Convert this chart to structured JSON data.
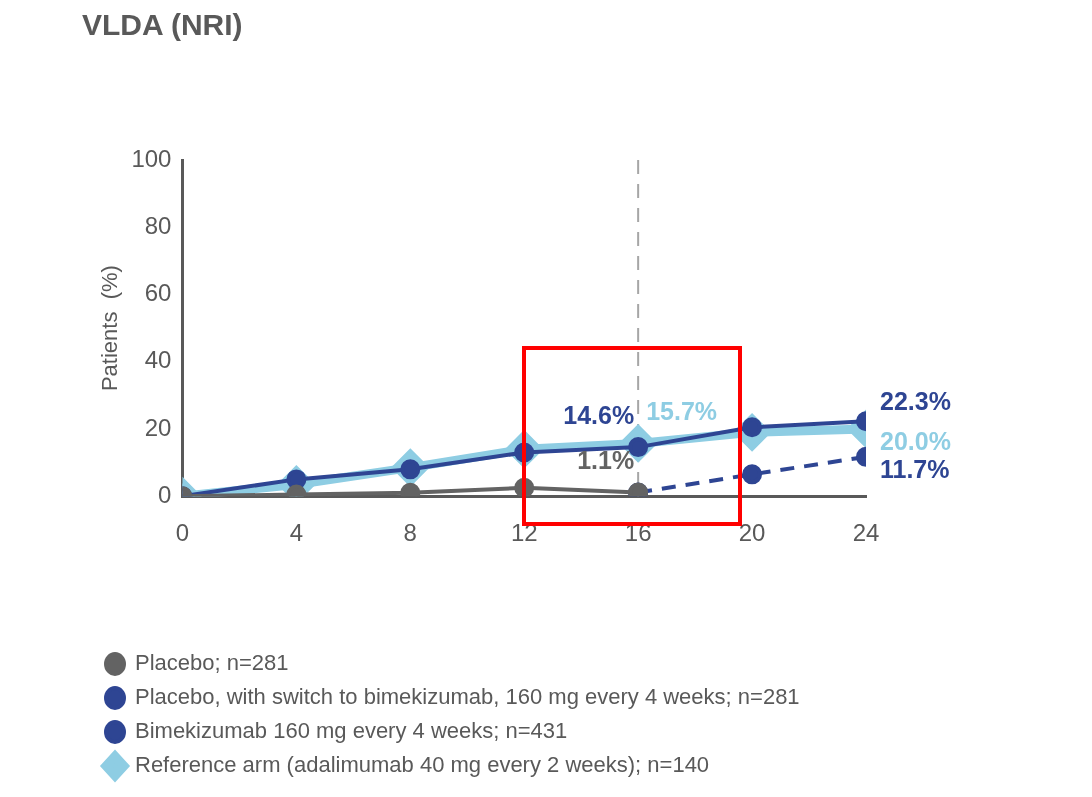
{
  "chart_data": {
    "type": "line",
    "title": "VLDA (NRI)",
    "ylabel": "Patients  (%)",
    "x": [
      0,
      4,
      8,
      12,
      16,
      20,
      24
    ],
    "xlim": [
      0,
      24
    ],
    "xticks": [
      0,
      4,
      8,
      12,
      16,
      20,
      24
    ],
    "ylim": [
      0,
      100
    ],
    "yticks": [
      0,
      20,
      40,
      60,
      80,
      100
    ],
    "grid": false,
    "legend": "bottom",
    "line_style": "solid",
    "ref_lines": [
      {
        "axis": "x",
        "value": 16,
        "color": "#a6a6a6",
        "line_style": "dashed"
      }
    ],
    "series": [
      {
        "name": "Placebo; n=281",
        "color": "#636363",
        "marker": "circle",
        "values": [
          0,
          0.5,
          1,
          2.5,
          1.1,
          null,
          null
        ],
        "value_labels": [
          null,
          null,
          null,
          null,
          "1.1%",
          null,
          null
        ]
      },
      {
        "name": "Placebo, with switch to bimekizumab, 160 mg every 4 weeks; n=281",
        "color": "#2e4593",
        "marker": "circle",
        "line_style": "dashed",
        "values": [
          null,
          null,
          null,
          null,
          1.1,
          6.5,
          11.7
        ],
        "value_labels": [
          null,
          null,
          null,
          null,
          null,
          null,
          "11.7%"
        ]
      },
      {
        "name": "Bimekizumab 160 mg every 4 weeks; n=431",
        "color": "#2e4593",
        "marker": "circle",
        "values": [
          0,
          5,
          8,
          13,
          14.6,
          20.5,
          22.3
        ],
        "value_labels": [
          null,
          null,
          null,
          null,
          "14.6%",
          null,
          "22.3%"
        ]
      },
      {
        "name": "Reference arm (adalimumab 40 mg every 2 weeks); n=140",
        "color": "#8ecde3",
        "marker": "diamond",
        "values": [
          0,
          3.5,
          8.5,
          14,
          15.7,
          19,
          20.0
        ],
        "value_labels": [
          null,
          null,
          null,
          null,
          "15.7%",
          null,
          "20.0%"
        ]
      }
    ]
  }
}
